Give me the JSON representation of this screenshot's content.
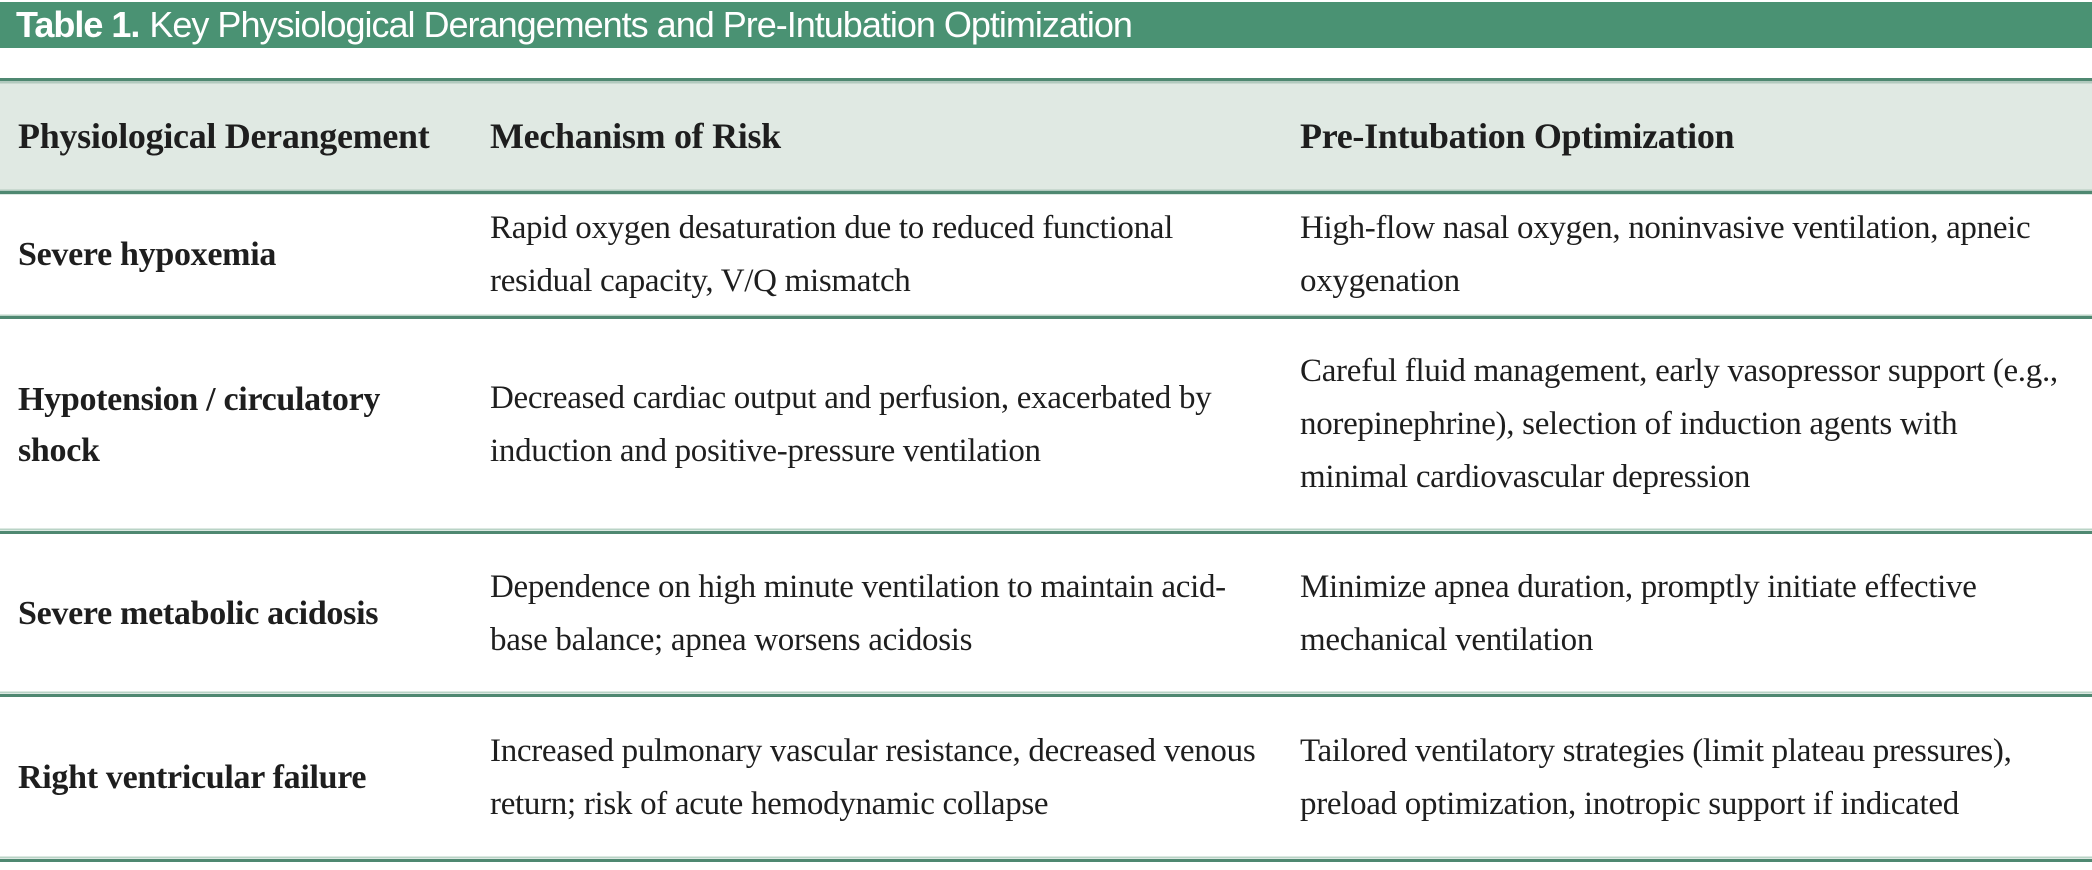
{
  "colors": {
    "banner_green": "#4A9273",
    "header_band_green": "#E0E9E3",
    "rule_green": "#4F8871",
    "rule_light_green": "#B9D3C6",
    "body_text": "#1E1E1E",
    "title_text": "#FFFFFF"
  },
  "table": {
    "title_label": "Table 1.",
    "title_text": "Key Physiological Derangements and Pre-Intubation Optimization",
    "columns": [
      "Physiological Derangement",
      "Mechanism of Risk",
      "Pre-Intubation Optimization"
    ],
    "rows": [
      {
        "derangement": "Severe hypoxemia",
        "mechanism": "Rapid oxygen desaturation due to reduced functional residual capacity, V/Q mismatch",
        "optimization": "High-flow nasal oxygen, noninvasive ventilation, apneic oxygenation"
      },
      {
        "derangement": "Hypotension / circulatory shock",
        "mechanism": "Decreased cardiac output and perfusion, exacerbated by induction and positive-pressure ventilation",
        "optimization": "Careful fluid management, early vasopressor support (e.g., norepinephrine), selection of induction agents with minimal cardiovascular depression"
      },
      {
        "derangement": "Severe metabolic acidosis",
        "mechanism": "Dependence on high minute ventilation to maintain acid-base balance; apnea worsens acidosis",
        "optimization": "Minimize apnea duration, promptly initiate effective mechanical ventilation"
      },
      {
        "derangement": "Right ventricular failure",
        "mechanism": "Increased pulmonary vascular resistance, decreased venous return; risk of acute hemodynamic collapse",
        "optimization": "Tailored ventilatory strategies (limit plateau pressures), preload optimization, inotropic support if indicated"
      }
    ]
  }
}
